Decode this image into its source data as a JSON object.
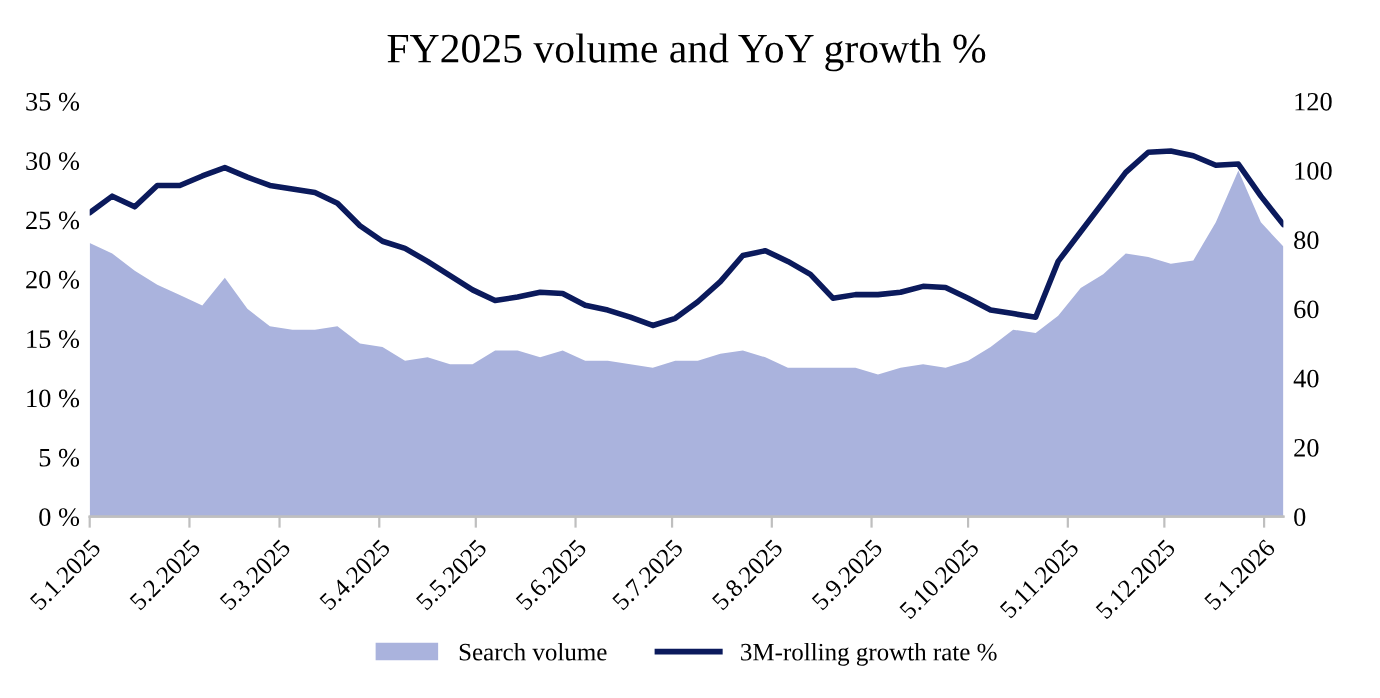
{
  "chart_data": {
    "type": "line",
    "title": "FY2025 volume and YoY growth %",
    "x": [
      "2025-01-05",
      "2025-01-12",
      "2025-01-19",
      "2025-01-26",
      "2025-02-02",
      "2025-02-09",
      "2025-02-16",
      "2025-02-23",
      "2025-03-02",
      "2025-03-09",
      "2025-03-16",
      "2025-03-23",
      "2025-03-30",
      "2025-04-06",
      "2025-04-13",
      "2025-04-20",
      "2025-04-27",
      "2025-05-04",
      "2025-05-11",
      "2025-05-18",
      "2025-05-25",
      "2025-06-01",
      "2025-06-08",
      "2025-06-15",
      "2025-06-22",
      "2025-06-29",
      "2025-07-06",
      "2025-07-13",
      "2025-07-20",
      "2025-07-27",
      "2025-08-03",
      "2025-08-10",
      "2025-08-17",
      "2025-08-24",
      "2025-08-31",
      "2025-09-07",
      "2025-09-14",
      "2025-09-21",
      "2025-09-28",
      "2025-10-05",
      "2025-10-12",
      "2025-10-19",
      "2025-10-26",
      "2025-11-02",
      "2025-11-09",
      "2025-11-16",
      "2025-11-23",
      "2025-11-30",
      "2025-12-07",
      "2025-12-14",
      "2025-12-21",
      "2025-12-28",
      "2026-01-04",
      "2026-01-11"
    ],
    "series": [
      {
        "name": "Search volume",
        "type": "area",
        "axis": "y2",
        "color": "#aab3dd",
        "values": [
          79,
          76,
          71,
          67,
          64,
          61,
          69,
          60,
          55,
          54,
          54,
          55,
          50,
          49,
          45,
          46,
          44,
          44,
          48,
          48,
          46,
          48,
          45,
          45,
          44,
          43,
          45,
          45,
          47,
          48,
          46,
          43,
          43,
          43,
          43,
          41,
          43,
          44,
          43,
          45,
          49,
          54,
          53,
          58,
          66,
          70,
          76,
          75,
          73,
          74,
          85,
          100,
          85,
          78
        ]
      },
      {
        "name": "3M-rolling growth rate %",
        "axis": "y",
        "color": "#0b1a5c",
        "values": [
          25.6,
          27.0,
          26.1,
          27.9,
          27.9,
          28.7,
          29.4,
          28.6,
          27.9,
          27.6,
          27.3,
          26.4,
          24.5,
          23.2,
          22.6,
          21.5,
          20.3,
          19.1,
          18.2,
          18.5,
          18.9,
          18.8,
          17.8,
          17.4,
          16.8,
          16.1,
          16.7,
          18.1,
          19.8,
          22.0,
          22.4,
          21.5,
          20.4,
          18.4,
          18.7,
          18.7,
          18.9,
          19.4,
          19.3,
          18.4,
          17.4,
          17.1,
          16.8,
          21.5,
          24.0,
          26.5,
          29.0,
          30.7,
          30.8,
          30.4,
          29.6,
          29.7,
          27.0,
          24.6
        ]
      }
    ],
    "xlim": [
      "2025-01-05",
      "2026-01-11"
    ],
    "xticks": [
      {
        "value": "2025-01-05",
        "label": "5.1.2025"
      },
      {
        "value": "2025-02-05",
        "label": "5.2.2025"
      },
      {
        "value": "2025-03-05",
        "label": "5.3.2025"
      },
      {
        "value": "2025-04-05",
        "label": "5.4.2025"
      },
      {
        "value": "2025-05-05",
        "label": "5.5.2025"
      },
      {
        "value": "2025-06-05",
        "label": "5.6.2025"
      },
      {
        "value": "2025-07-05",
        "label": "5.7.2025"
      },
      {
        "value": "2025-08-05",
        "label": "5.8.2025"
      },
      {
        "value": "2025-09-05",
        "label": "5.9.2025"
      },
      {
        "value": "2025-10-05",
        "label": "5.10.2025"
      },
      {
        "value": "2025-11-05",
        "label": "5.11.2025"
      },
      {
        "value": "2025-12-05",
        "label": "5.12.2025"
      },
      {
        "value": "2026-01-05",
        "label": "5.1.2026"
      }
    ],
    "ylim": [
      0,
      35
    ],
    "yticks": [
      {
        "value": 0,
        "label": "0 %"
      },
      {
        "value": 5,
        "label": "5 %"
      },
      {
        "value": 10,
        "label": "10 %"
      },
      {
        "value": 15,
        "label": "15 %"
      },
      {
        "value": 20,
        "label": "20 %"
      },
      {
        "value": 25,
        "label": "25 %"
      },
      {
        "value": 30,
        "label": "30 %"
      },
      {
        "value": 35,
        "label": "35 %"
      }
    ],
    "y2lim": [
      0,
      120
    ],
    "y2ticks": [
      0,
      20,
      40,
      60,
      80,
      100,
      120
    ],
    "legend": "bottom",
    "grid": false,
    "marker": "none",
    "line_style": "solid"
  }
}
